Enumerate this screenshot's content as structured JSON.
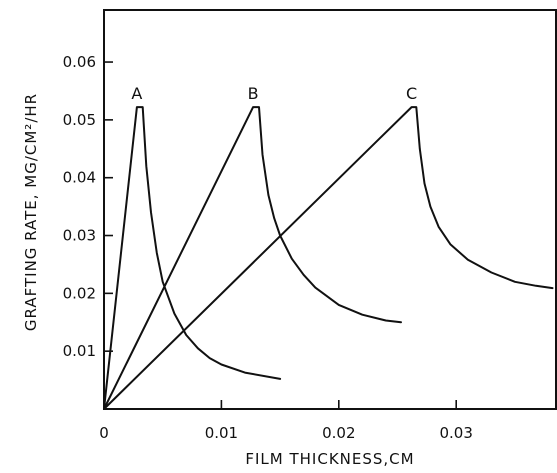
{
  "chart_data": {
    "type": "line",
    "title": "",
    "xlabel": "FILM THICKNESS,CM",
    "ylabel": "GRAFTING RATE, MG/CM²/HR",
    "xlim": [
      0,
      0.0385
    ],
    "ylim": [
      0,
      0.069
    ],
    "xticks": [
      0,
      0.01,
      0.02,
      0.03
    ],
    "xtick_labels": [
      "0",
      "0.01",
      "0.02",
      "0.03"
    ],
    "yticks": [
      0.01,
      0.02,
      0.03,
      0.04,
      0.05,
      0.06
    ],
    "ytick_labels": [
      "0.01",
      "0.02",
      "0.03",
      "0.04",
      "0.05",
      "0.06"
    ],
    "grid": false,
    "legend": "none",
    "series": [
      {
        "label": "A",
        "x": [
          0,
          0.0028,
          0.0033,
          0.0036,
          0.004,
          0.0045,
          0.005,
          0.006,
          0.007,
          0.008,
          0.009,
          0.01,
          0.012,
          0.015
        ],
        "y": [
          0,
          0.0522,
          0.0522,
          0.042,
          0.034,
          0.027,
          0.022,
          0.0165,
          0.0128,
          0.0105,
          0.0088,
          0.0077,
          0.0063,
          0.0052
        ]
      },
      {
        "label": "B",
        "x": [
          0,
          0.0127,
          0.0132,
          0.0135,
          0.014,
          0.0145,
          0.015,
          0.016,
          0.017,
          0.018,
          0.02,
          0.022,
          0.024,
          0.0253
        ],
        "y": [
          0,
          0.0522,
          0.0522,
          0.044,
          0.037,
          0.033,
          0.03,
          0.026,
          0.0232,
          0.021,
          0.018,
          0.0163,
          0.0153,
          0.015
        ]
      },
      {
        "label": "C",
        "x": [
          0,
          0.0262,
          0.0266,
          0.0269,
          0.0273,
          0.0278,
          0.0285,
          0.0295,
          0.031,
          0.033,
          0.035,
          0.0368,
          0.0382
        ],
        "y": [
          0,
          0.0522,
          0.0522,
          0.045,
          0.039,
          0.035,
          0.0315,
          0.0285,
          0.0258,
          0.0236,
          0.022,
          0.0213,
          0.0209
        ]
      }
    ]
  }
}
